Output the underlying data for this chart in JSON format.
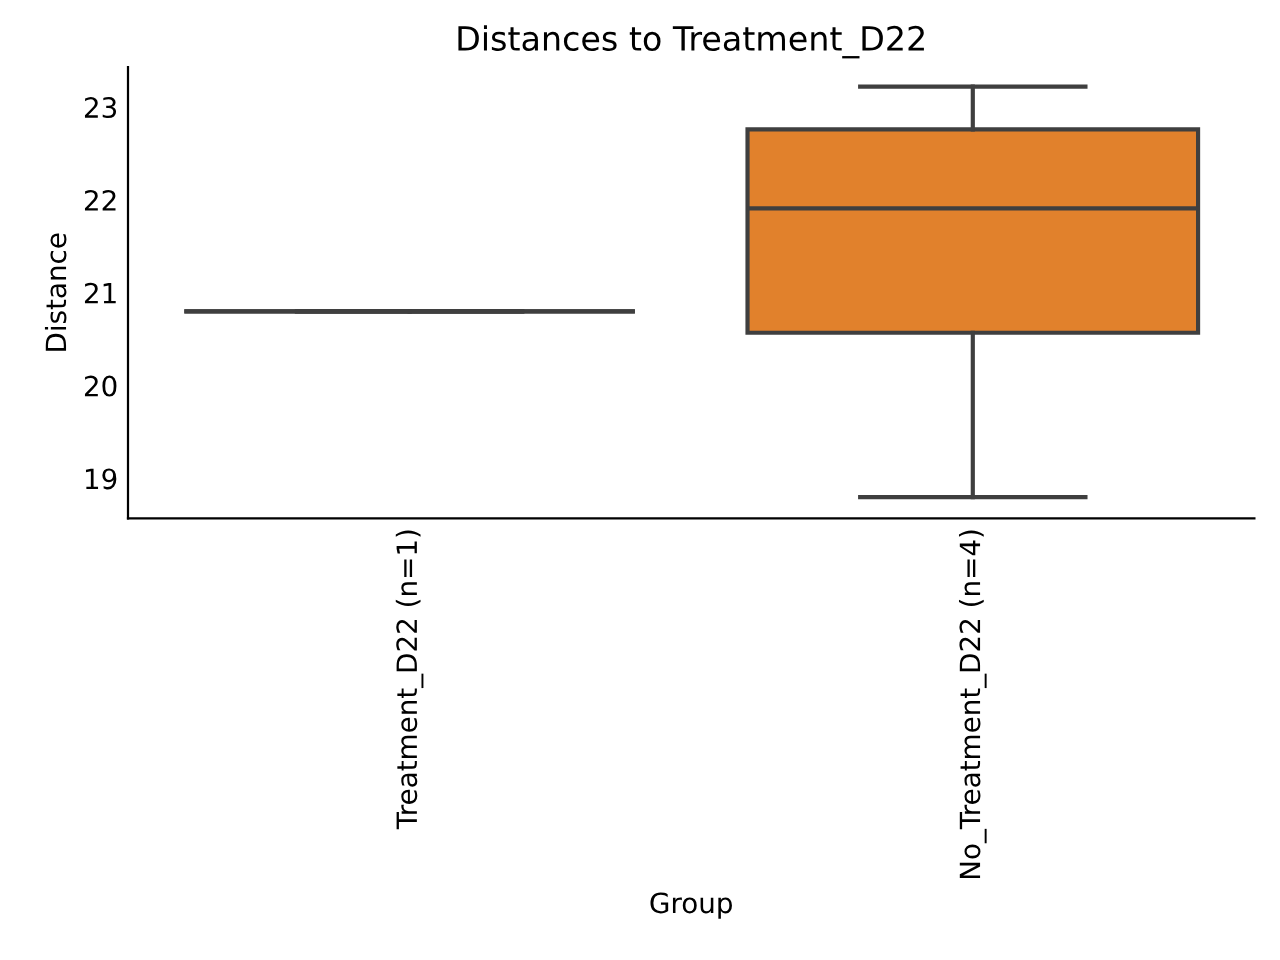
{
  "chart_data": {
    "type": "box",
    "title": "Distances to Treatment_D22",
    "xlabel": "Group",
    "ylabel": "Distance",
    "categories": [
      "Treatment_D22 (n=1)",
      "No_Treatment_D22 (n=4)"
    ],
    "boxes": [
      {
        "low": 20.8,
        "q1": 20.8,
        "median": 20.8,
        "q3": 20.8,
        "high": 20.8
      },
      {
        "low": 18.8,
        "q1": 20.57,
        "median": 21.91,
        "q3": 22.76,
        "high": 23.22
      }
    ],
    "colors": [
      null,
      "#e1812c"
    ],
    "ylim": [
      18.57,
      23.43
    ],
    "yticks": [
      19,
      20,
      21,
      22,
      23
    ],
    "grid": false
  }
}
